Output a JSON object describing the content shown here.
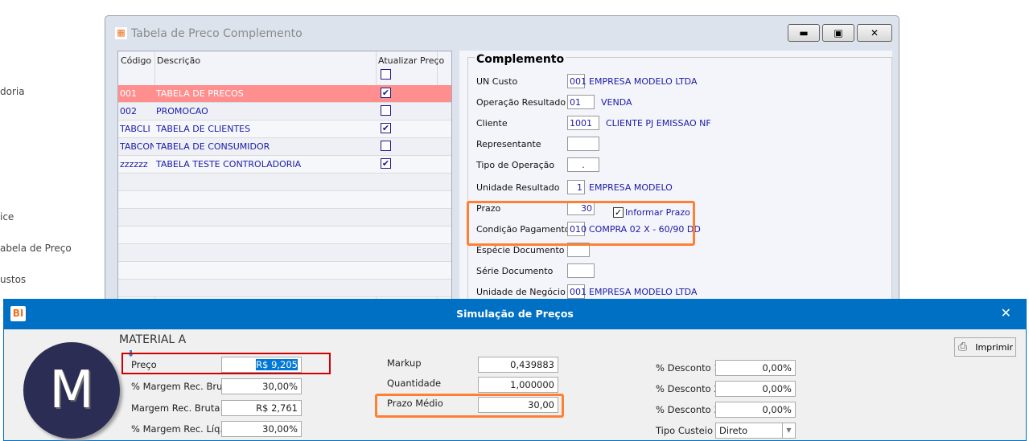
{
  "background": {
    "items": [
      "doria",
      "ice",
      "abela de Preço",
      "ustos"
    ]
  },
  "window": {
    "title": "Tabela de Preco Complemento",
    "grid": {
      "headers": [
        "Código",
        "Descrição",
        "Atualizar Preço"
      ],
      "rows": [
        {
          "code": "001",
          "desc": "TABELA DE PRECOS",
          "checked": true,
          "selected": true
        },
        {
          "code": "002",
          "desc": "PROMOCAO",
          "checked": false
        },
        {
          "code": "TABCLI",
          "desc": "TABELA DE CLIENTES",
          "checked": true
        },
        {
          "code": "TABCON",
          "desc": "TABELA DE CONSUMIDOR",
          "checked": false
        },
        {
          "code": "zzzzzz",
          "desc": "TABELA TESTE CONTROLADORIA",
          "checked": true
        }
      ]
    },
    "complemento": {
      "title": "Complemento",
      "fields": [
        {
          "label": "UN Custo",
          "value": "001",
          "desc": "EMPRESA MODELO LTDA"
        },
        {
          "label": "Operação Resultado",
          "value": "01",
          "desc": "VENDA"
        },
        {
          "label": "Cliente",
          "value": "1001",
          "desc": "CLIENTE PJ EMISSAO NF"
        },
        {
          "label": "Representante",
          "value": "",
          "desc": ""
        },
        {
          "label": "Tipo de Operação",
          "value": ".",
          "desc": ""
        },
        {
          "label": "Unidade Resultado",
          "value": "1",
          "desc": "EMPRESA MODELO"
        },
        {
          "label": "Prazo",
          "value": "30",
          "desc": ""
        },
        {
          "label": "Condição Pagamento",
          "value": "010",
          "desc": "COMPRA 02 X - 60/90 DD"
        },
        {
          "label": "Espécie Documento",
          "value": "",
          "desc": ""
        },
        {
          "label": "Série Documento",
          "value": "",
          "desc": ""
        },
        {
          "label": "Unidade de Negócio",
          "value": "001",
          "desc": "EMPRESA MODELO LTDA"
        }
      ],
      "informar_prazo": {
        "label": "Informar Prazo",
        "checked": true
      }
    }
  },
  "dialog": {
    "title": "Simulação de Preços",
    "logo": "BI",
    "avatar_letter": "M",
    "material": "MATERIAL A",
    "left": [
      {
        "label": "Preço",
        "value": "R$ 9,205"
      },
      {
        "label": "% Margem Rec. Bruta",
        "value": "30,00%"
      },
      {
        "label": "Margem Rec. Bruta",
        "value": "R$ 2,761"
      },
      {
        "label": "% Margem Rec. Líq.",
        "value": "30,00%"
      }
    ],
    "mid": [
      {
        "label": "Markup",
        "value": "0,439883"
      },
      {
        "label": "Quantidade",
        "value": "1,000000"
      },
      {
        "label": "Prazo Médio",
        "value": "30,00"
      }
    ],
    "right": [
      {
        "label": "% Desconto 1",
        "value": "0,00%"
      },
      {
        "label": "% Desconto 2",
        "value": "0,00%"
      },
      {
        "label": "% Desconto 3",
        "value": "0,00%"
      }
    ],
    "tipo_custeio": {
      "label": "Tipo Custeio",
      "value": "Direto"
    },
    "print_label": "Imprimir"
  },
  "colors": {
    "accent": "#0070c4",
    "highlight_row": "#ff8f8f",
    "orange": "#ff8033",
    "red": "#d00000"
  }
}
